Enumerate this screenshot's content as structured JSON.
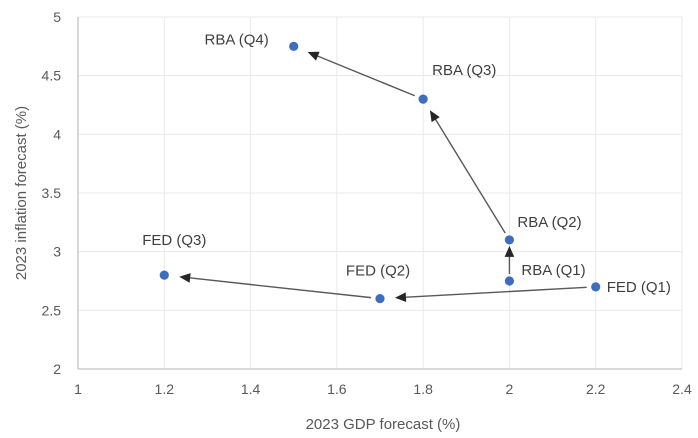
{
  "chart_data": {
    "type": "scatter",
    "title": "",
    "xlabel": "2023 GDP forecast (%)",
    "ylabel": "2023 inflation forecast (%)",
    "xlim": [
      1,
      2.4
    ],
    "ylim": [
      2,
      5
    ],
    "x_ticks": [
      1,
      1.2,
      1.4,
      1.6,
      1.8,
      2,
      2.2,
      2.4
    ],
    "x_tick_labels": [
      "1",
      "1.2",
      "1.4",
      "1.6",
      "1.8",
      "2",
      "2.2",
      "2.4"
    ],
    "y_ticks": [
      2,
      2.5,
      3,
      3.5,
      4,
      4.5,
      5
    ],
    "y_tick_labels": [
      "2",
      "2.5",
      "3",
      "3.5",
      "4",
      "4.5",
      "5"
    ],
    "grid": true,
    "legend": false,
    "colors": {
      "point": "#3d6cc0",
      "grid": "#e9e9e9",
      "axis": "#c3c3c3",
      "arrow_line": "#595959",
      "arrow_head": "#262626"
    },
    "series": [
      {
        "name": "FED",
        "points": [
          {
            "label": "FED (Q1)",
            "x": 2.2,
            "y": 2.7,
            "label_anchor": "start",
            "label_dx": 11,
            "label_dy": 5
          },
          {
            "label": "FED (Q2)",
            "x": 1.7,
            "y": 2.6,
            "label_anchor": "middle",
            "label_dx": -2,
            "label_dy": -23
          },
          {
            "label": "FED (Q3)",
            "x": 1.2,
            "y": 2.8,
            "label_anchor": "middle",
            "label_dx": 10,
            "label_dy": -30
          }
        ]
      },
      {
        "name": "RBA",
        "points": [
          {
            "label": "RBA (Q1)",
            "x": 2.0,
            "y": 2.75,
            "label_anchor": "start",
            "label_dx": 12,
            "label_dy": -6
          },
          {
            "label": "RBA (Q2)",
            "x": 2.0,
            "y": 3.1,
            "label_anchor": "start",
            "label_dx": 8,
            "label_dy": -13
          },
          {
            "label": "RBA (Q3)",
            "x": 1.8,
            "y": 4.3,
            "label_anchor": "start",
            "label_dx": 9,
            "label_dy": -24
          },
          {
            "label": "RBA (Q4)",
            "x": 1.5,
            "y": 4.75,
            "label_anchor": "end",
            "label_dx": -25,
            "label_dy": -2
          }
        ]
      }
    ],
    "arrows": [
      {
        "from": "FED (Q1)",
        "to": "FED (Q2)",
        "trim_from": 9,
        "trim_to": 15
      },
      {
        "from": "FED (Q2)",
        "to": "FED (Q3)",
        "trim_from": 9,
        "trim_to": 15
      },
      {
        "from": "RBA (Q1)",
        "to": "RBA (Q2)",
        "trim_from": 7,
        "trim_to": 6
      },
      {
        "from": "RBA (Q2)",
        "to": "RBA (Q3)",
        "trim_from": 8,
        "trim_to": 13
      },
      {
        "from": "RBA (Q3)",
        "to": "RBA (Q4)",
        "trim_from": 9,
        "trim_to": 15
      }
    ]
  }
}
